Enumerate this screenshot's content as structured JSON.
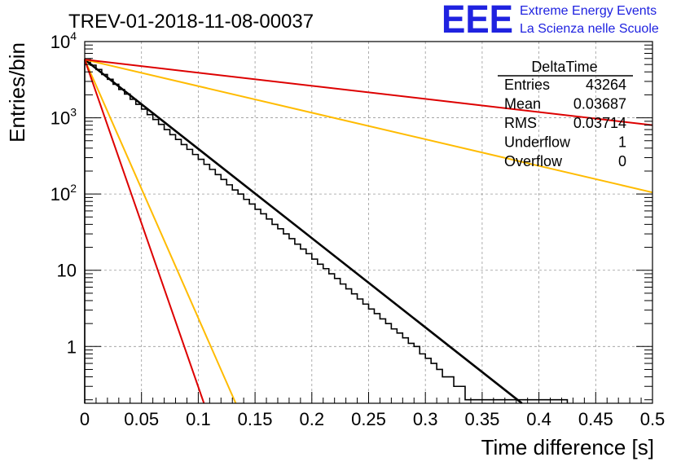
{
  "chart_data": {
    "type": "line",
    "title": "TREV-01-2018-11-08-00037",
    "xlabel": "Time difference [s]",
    "ylabel": "Entries/bin",
    "xlim": [
      0,
      0.5
    ],
    "ylim": [
      0.18,
      10000
    ],
    "yscale": "log",
    "grid": true,
    "x_ticks": [
      "0",
      "0.05",
      "0.1",
      "0.15",
      "0.2",
      "0.25",
      "0.3",
      "0.35",
      "0.4",
      "0.45",
      "0.5"
    ],
    "y_ticks": [
      {
        "value": 1,
        "label": "1"
      },
      {
        "value": 10,
        "label": "10"
      },
      {
        "value": 100,
        "base": "10",
        "exp": "2"
      },
      {
        "value": 1000,
        "base": "10",
        "exp": "3"
      },
      {
        "value": 10000,
        "base": "10",
        "exp": "4"
      }
    ],
    "histogram": {
      "name": "DeltaTime",
      "color": "#000000",
      "bin_width": 0.005,
      "edges_x": [
        0,
        0.005,
        0.01,
        0.015,
        0.02,
        0.025,
        0.03,
        0.035,
        0.04,
        0.045,
        0.05,
        0.055,
        0.06,
        0.065,
        0.07,
        0.075,
        0.08,
        0.085,
        0.09,
        0.095,
        0.1,
        0.105,
        0.11,
        0.115,
        0.12,
        0.125,
        0.13,
        0.135,
        0.14,
        0.145,
        0.15,
        0.155,
        0.16,
        0.165,
        0.17,
        0.175,
        0.18,
        0.185,
        0.19,
        0.195,
        0.2,
        0.205,
        0.21,
        0.215,
        0.22,
        0.225,
        0.23,
        0.235,
        0.24,
        0.245,
        0.25,
        0.255,
        0.26,
        0.265,
        0.27,
        0.275,
        0.28,
        0.285,
        0.29,
        0.295,
        0.3,
        0.305,
        0.31,
        0.315,
        0.32,
        0.325,
        0.33,
        0.335,
        0.34,
        0.345,
        0.35,
        0.355,
        0.36,
        0.365,
        0.37,
        0.375,
        0.38,
        0.385,
        0.39,
        0.395,
        0.4,
        0.405,
        0.41,
        0.415,
        0.42,
        0.425
      ],
      "counts": [
        5800,
        4900,
        4300,
        3700,
        3200,
        2750,
        2350,
        2050,
        1750,
        1500,
        1300,
        1100,
        950,
        820,
        700,
        600,
        520,
        445,
        385,
        330,
        285,
        245,
        210,
        180,
        155,
        132,
        113,
        100,
        85,
        74,
        63,
        55,
        47,
        40,
        35,
        30,
        26,
        22,
        19,
        16.5,
        14,
        12,
        10.5,
        9,
        7.8,
        6.6,
        5.7,
        4.9,
        4.2,
        3.6,
        3.1,
        2.7,
        2.3,
        2.0,
        1.7,
        1.5,
        1.3,
        1.1,
        1.0,
        0.8,
        0.7,
        0.6,
        0.5,
        0.4,
        0.4,
        0.3,
        0.3,
        0.2,
        0.2,
        0.2,
        0.2,
        0.2,
        0.2,
        0.2,
        0.2,
        0.2,
        0.2,
        0.2,
        0.2,
        0.2,
        0.2,
        0.2,
        0.2,
        0.2,
        0.2
      ],
      "note_counts": "approximate steps read from plot"
    },
    "series": [
      {
        "color": "#000000",
        "x": [
          0,
          0.385
        ],
        "y": [
          5800,
          0.18
        ]
      },
      {
        "color": "#ffbb00",
        "x": [
          0,
          0.5
        ],
        "y": [
          5800,
          105
        ]
      },
      {
        "color": "#dd0000",
        "x": [
          0,
          0.5
        ],
        "y": [
          5800,
          800
        ]
      },
      {
        "color": "#ffbb00",
        "x": [
          0,
          0.133
        ],
        "y": [
          5800,
          0.18
        ]
      },
      {
        "color": "#dd0000",
        "x": [
          0,
          0.105
        ],
        "y": [
          5800,
          0.18
        ]
      }
    ],
    "stats": {
      "title": "DeltaTime",
      "rows": [
        {
          "label": "Entries",
          "value": "43264"
        },
        {
          "label": "Mean",
          "value": "0.03687"
        },
        {
          "label": "RMS",
          "value": "0.03714"
        },
        {
          "label": "Underflow",
          "value": "1"
        },
        {
          "label": "Overflow",
          "value": "0"
        }
      ]
    }
  },
  "logo": {
    "text": "EEE",
    "line1": "Extreme Energy Events",
    "line2": "La Scienza nelle Scuole"
  }
}
